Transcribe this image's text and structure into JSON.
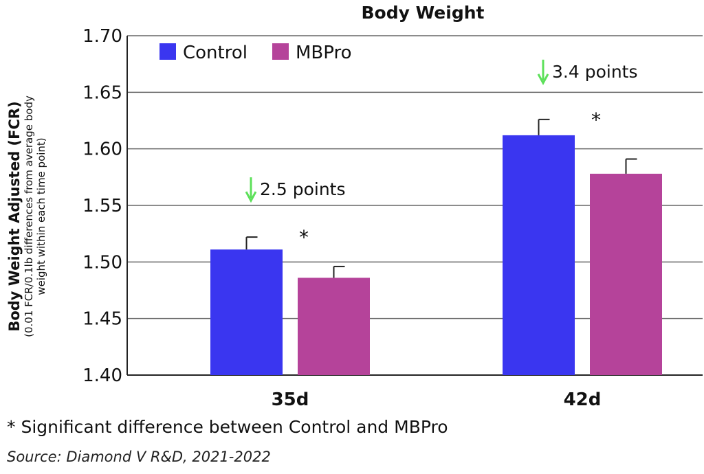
{
  "chart_data": {
    "type": "bar",
    "title": "Body Weight",
    "ylabel": "Body Weight Adjusted (FCR)",
    "ylabel_sub_line1": "(0.01 FCR/0.1lb differences from average body",
    "ylabel_sub_line2": "weight within each time point)",
    "xlabel": "",
    "categories": [
      "35d",
      "42d"
    ],
    "ylim": [
      1.4,
      1.7
    ],
    "yticks": [
      "1.40",
      "1.45",
      "1.50",
      "1.55",
      "1.60",
      "1.65",
      "1.70"
    ],
    "ytick_values": [
      1.4,
      1.45,
      1.5,
      1.55,
      1.6,
      1.65,
      1.7
    ],
    "grid": true,
    "legend_position": "top-left",
    "series": [
      {
        "name": "Control",
        "color": "#3a36f0",
        "values": [
          1.511,
          1.612
        ],
        "error": [
          0.011,
          0.014
        ]
      },
      {
        "name": "MBPro",
        "color": "#b5439a",
        "values": [
          1.486,
          1.578
        ],
        "error": [
          0.01,
          0.013
        ]
      }
    ],
    "annotations": [
      {
        "category": "35d",
        "text": "2.5 points",
        "arrow": "down",
        "arrow_color": "#5de05a"
      },
      {
        "category": "42d",
        "text": "3.4 points",
        "arrow": "down",
        "arrow_color": "#5de05a"
      }
    ],
    "significance_marker": "*"
  },
  "footnote": "* Significant difference between Control and MBPro",
  "source": "Source: Diamond V R&D, 2021-2022"
}
